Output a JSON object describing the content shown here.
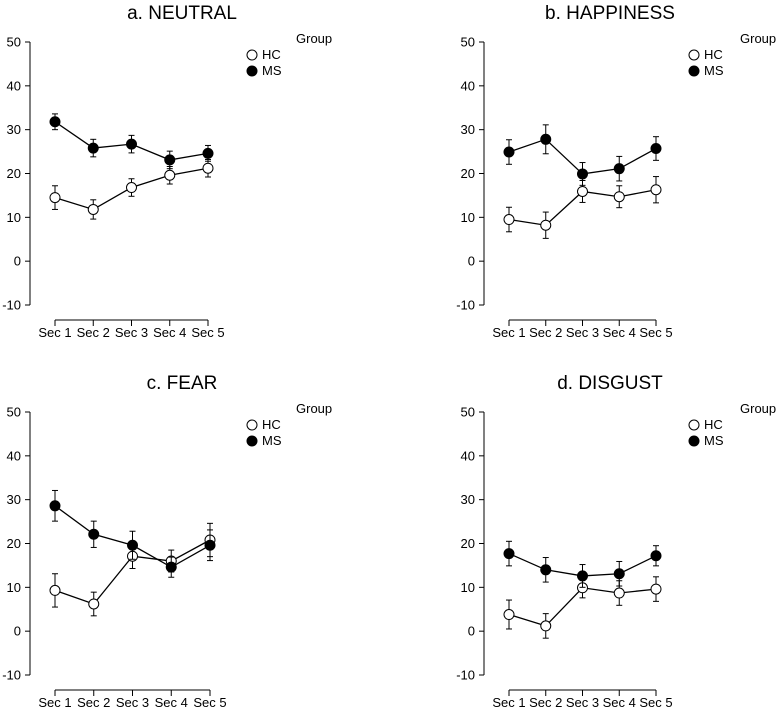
{
  "chart_data": [
    {
      "type": "line",
      "title": "a. NEUTRAL",
      "categories": [
        "Sec 1",
        "Sec 2",
        "Sec 3",
        "Sec 4",
        "Sec 5"
      ],
      "ylim": [
        -10,
        50
      ],
      "yticks": [
        -10,
        0,
        10,
        20,
        30,
        40,
        50
      ],
      "legend_title": "Group",
      "series": [
        {
          "name": "HC",
          "marker": "open-circle",
          "values": [
            14.5,
            11.8,
            16.8,
            19.6,
            21.2
          ],
          "errors": [
            2.7,
            2.2,
            2.0,
            2.0,
            2.0
          ]
        },
        {
          "name": "MS",
          "marker": "filled-circle",
          "values": [
            31.8,
            25.8,
            26.7,
            23.1,
            24.6
          ],
          "errors": [
            1.8,
            2.0,
            2.0,
            2.0,
            1.8
          ]
        }
      ]
    },
    {
      "type": "line",
      "title": "b. HAPPINESS",
      "categories": [
        "Sec 1",
        "Sec 2",
        "Sec 3",
        "Sec 4",
        "Sec 5"
      ],
      "ylim": [
        -10,
        50
      ],
      "yticks": [
        -10,
        0,
        10,
        20,
        30,
        40,
        50
      ],
      "legend_title": "Group",
      "series": [
        {
          "name": "HC",
          "marker": "open-circle",
          "values": [
            9.5,
            8.2,
            15.9,
            14.7,
            16.3
          ],
          "errors": [
            2.8,
            3.0,
            2.5,
            2.5,
            3.0
          ]
        },
        {
          "name": "MS",
          "marker": "filled-circle",
          "values": [
            24.9,
            27.8,
            19.9,
            21.1,
            25.7
          ],
          "errors": [
            2.8,
            3.3,
            2.6,
            2.8,
            2.7
          ]
        }
      ]
    },
    {
      "type": "line",
      "title": "c. FEAR",
      "categories": [
        "Sec 1",
        "Sec 2",
        "Sec 3",
        "Sec 4",
        "Sec 5"
      ],
      "ylim": [
        -10,
        50
      ],
      "yticks": [
        -10,
        0,
        10,
        20,
        30,
        40,
        50
      ],
      "legend_title": "Group",
      "series": [
        {
          "name": "HC",
          "marker": "open-circle",
          "values": [
            9.3,
            6.2,
            17.1,
            16.0,
            20.8
          ],
          "errors": [
            3.8,
            2.7,
            2.8,
            2.5,
            3.8
          ]
        },
        {
          "name": "MS",
          "marker": "filled-circle",
          "values": [
            28.6,
            22.1,
            19.6,
            14.6,
            19.6
          ],
          "errors": [
            3.5,
            3.0,
            3.2,
            2.3,
            3.5
          ]
        }
      ]
    },
    {
      "type": "line",
      "title": "d. DISGUST",
      "categories": [
        "Sec 1",
        "Sec 2",
        "Sec 3",
        "Sec 4",
        "Sec 5"
      ],
      "ylim": [
        -10,
        50
      ],
      "yticks": [
        -10,
        0,
        10,
        20,
        30,
        40,
        50
      ],
      "legend_title": "Group",
      "series": [
        {
          "name": "HC",
          "marker": "open-circle",
          "values": [
            3.8,
            1.2,
            9.9,
            8.7,
            9.6
          ],
          "errors": [
            3.3,
            2.8,
            2.3,
            2.8,
            2.8
          ]
        },
        {
          "name": "MS",
          "marker": "filled-circle",
          "values": [
            17.7,
            14.0,
            12.6,
            13.1,
            17.2
          ],
          "errors": [
            2.8,
            2.8,
            2.6,
            2.8,
            2.3
          ]
        }
      ]
    }
  ]
}
